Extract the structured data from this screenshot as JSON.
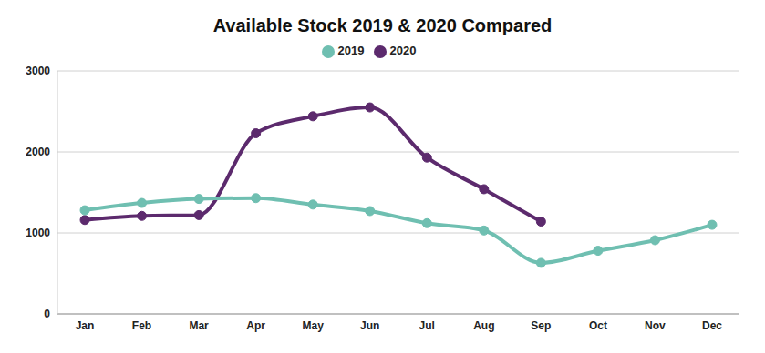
{
  "chart_data": {
    "type": "line",
    "title": "Available Stock 2019 & 2020 Compared",
    "categories": [
      "Jan",
      "Feb",
      "Mar",
      "Apr",
      "May",
      "Jun",
      "Jul",
      "Aug",
      "Sep",
      "Oct",
      "Nov",
      "Dec"
    ],
    "series": [
      {
        "name": "2020",
        "color": "#5c2a6d",
        "marker": "circle",
        "line_style": "solid",
        "values": [
          1160,
          1210,
          1220,
          2230,
          2440,
          2550,
          1930,
          1540,
          1140,
          null,
          null,
          null
        ]
      },
      {
        "name": "2019",
        "color": "#6fbfb1",
        "marker": "circle",
        "line_style": "solid",
        "values": [
          1280,
          1370,
          1420,
          1430,
          1350,
          1270,
          1120,
          1030,
          630,
          780,
          910,
          1100
        ]
      }
    ],
    "ylim": [
      0,
      3000
    ],
    "yticks": [
      0,
      1000,
      2000,
      3000
    ],
    "grid": true,
    "legend": "top"
  }
}
